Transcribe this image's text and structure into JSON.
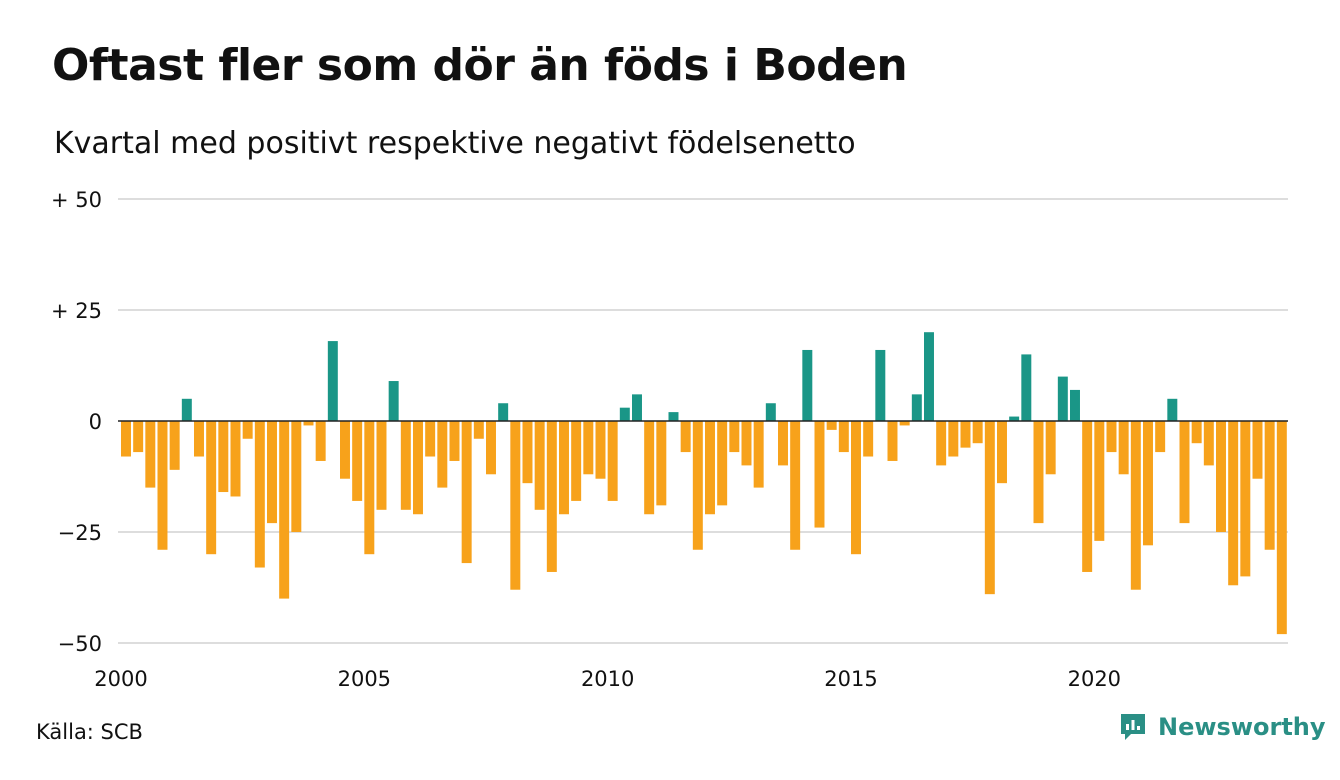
{
  "header": {
    "title": "Oftast fler som dör än föds i Boden",
    "subtitle": "Kvartal med positivt respektive negativt födelsenetto"
  },
  "footer": {
    "source": "Källa: SCB",
    "brand": "Newsworthy",
    "brand_icon": "newsworthy-logo-icon"
  },
  "chart_data": {
    "type": "bar",
    "ylim": [
      -50,
      50
    ],
    "grid": true,
    "y_ticks": [
      {
        "value": 50,
        "label": "+ 50"
      },
      {
        "value": 25,
        "label": "+ 25"
      },
      {
        "value": 0,
        "label": "0"
      },
      {
        "value": -25,
        "label": "−25"
      },
      {
        "value": -50,
        "label": "−50"
      }
    ],
    "x_ticks": [
      "2000",
      "2005",
      "2010",
      "2015",
      "2020"
    ],
    "x_start_year": 2000,
    "quarters_per_year": 4,
    "colors": {
      "positive": "#1a9687",
      "negative": "#f7a21b",
      "grid": "#dddddd",
      "zero_line": "#222222"
    },
    "values": [
      -8,
      -7,
      -15,
      -29,
      -11,
      5,
      -8,
      -30,
      -16,
      -17,
      -4,
      -33,
      -23,
      -40,
      -25,
      -1,
      -9,
      18,
      -13,
      -18,
      -30,
      -20,
      9,
      -20,
      -21,
      -8,
      -15,
      -9,
      -32,
      -4,
      -12,
      4,
      -38,
      -14,
      -20,
      -34,
      -21,
      -18,
      -12,
      -13,
      -18,
      3,
      6,
      -21,
      -19,
      2,
      -7,
      -29,
      -21,
      -19,
      -7,
      -10,
      -15,
      4,
      -10,
      -29,
      16,
      -24,
      -2,
      -7,
      -30,
      -8,
      16,
      -9,
      -1,
      6,
      20,
      -10,
      -8,
      -6,
      -5,
      -39,
      -14,
      1,
      15,
      -23,
      -12,
      10,
      7,
      -34,
      -27,
      -7,
      -12,
      -38,
      -28,
      -7,
      5,
      -23,
      -5,
      -10,
      -25,
      -37,
      -35,
      -13,
      -29,
      -48
    ]
  }
}
